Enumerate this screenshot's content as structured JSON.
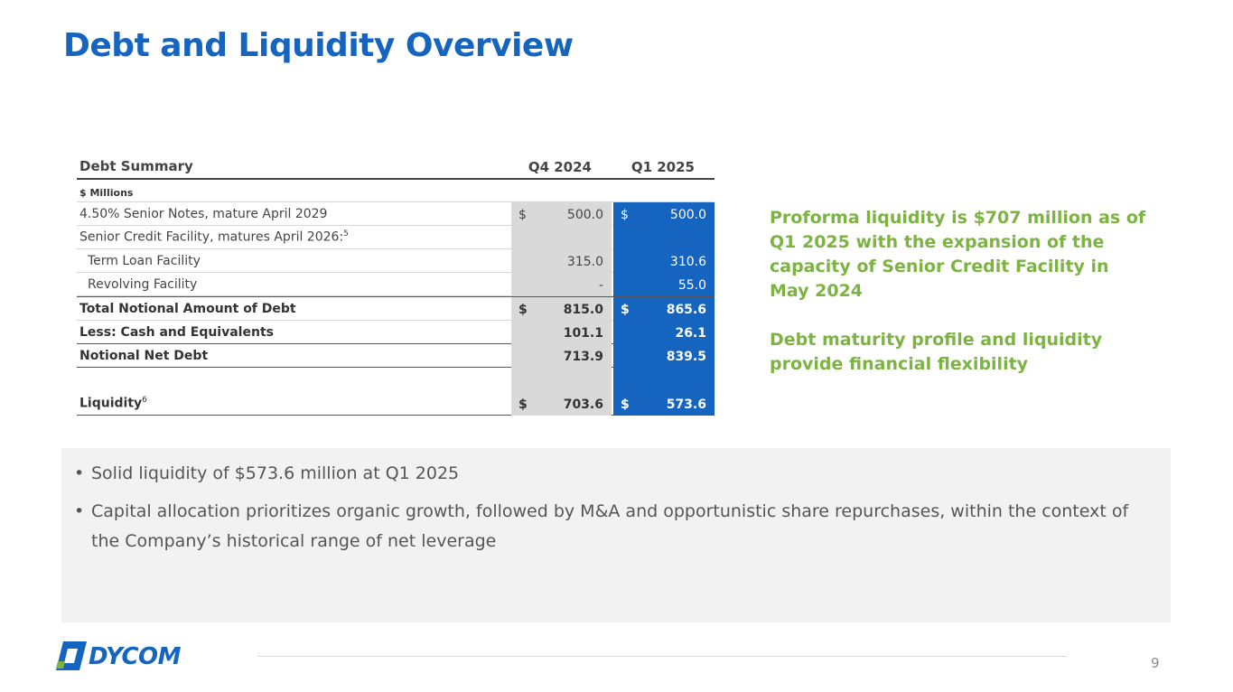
{
  "title": "Debt and Liquidity Overview",
  "table": {
    "header": {
      "label": "Debt Summary",
      "col1": "Q4 2024",
      "col2": "Q1 2025"
    },
    "units": "$ Millions",
    "rows": [
      {
        "label": "4.50% Senior Notes, mature April 2029",
        "d1": "$",
        "v1": "500.0",
        "d2": "$",
        "v2": "500.0"
      },
      {
        "label": "Senior Credit Facility, matures April 2026:",
        "sup": "5",
        "d1": "",
        "v1": "",
        "d2": "",
        "v2": ""
      },
      {
        "label": "Term Loan Facility",
        "d1": "",
        "v1": "315.0",
        "d2": "",
        "v2": "310.6"
      },
      {
        "label": "Revolving Facility",
        "d1": "",
        "v1": "-",
        "d2": "",
        "v2": "55.0"
      },
      {
        "label": "Total Notional Amount of Debt",
        "d1": "$",
        "v1": "815.0",
        "d2": "$",
        "v2": "865.6"
      },
      {
        "label": "Less: Cash and Equivalents",
        "d1": "",
        "v1": "101.1",
        "d2": "",
        "v2": "26.1"
      },
      {
        "label": "Notional Net Debt",
        "d1": "",
        "v1": "713.9",
        "d2": "",
        "v2": "839.5"
      },
      {
        "label": "Liquidity",
        "sup": "6",
        "d1": "$",
        "v1": "703.6",
        "d2": "$",
        "v2": "573.6"
      }
    ]
  },
  "sidebar": {
    "p1": "Proforma liquidity is $707 million as of Q1 2025 with the expansion of the capacity of Senior Credit Facility in May 2024",
    "p2": "Debt maturity profile and liquidity provide financial flexibility"
  },
  "bullets": [
    "Solid liquidity of $573.6 million at Q1 2025",
    "Capital allocation prioritizes organic growth, followed by M&A and opportunistic share repurchases, within the context of the Company’s historical range of net leverage"
  ],
  "bullet_glyph": "•",
  "logo_text": "DYCOM",
  "page_number": "9",
  "colors": {
    "brand_blue": "#1565C0",
    "accent_green": "#7CB342"
  }
}
